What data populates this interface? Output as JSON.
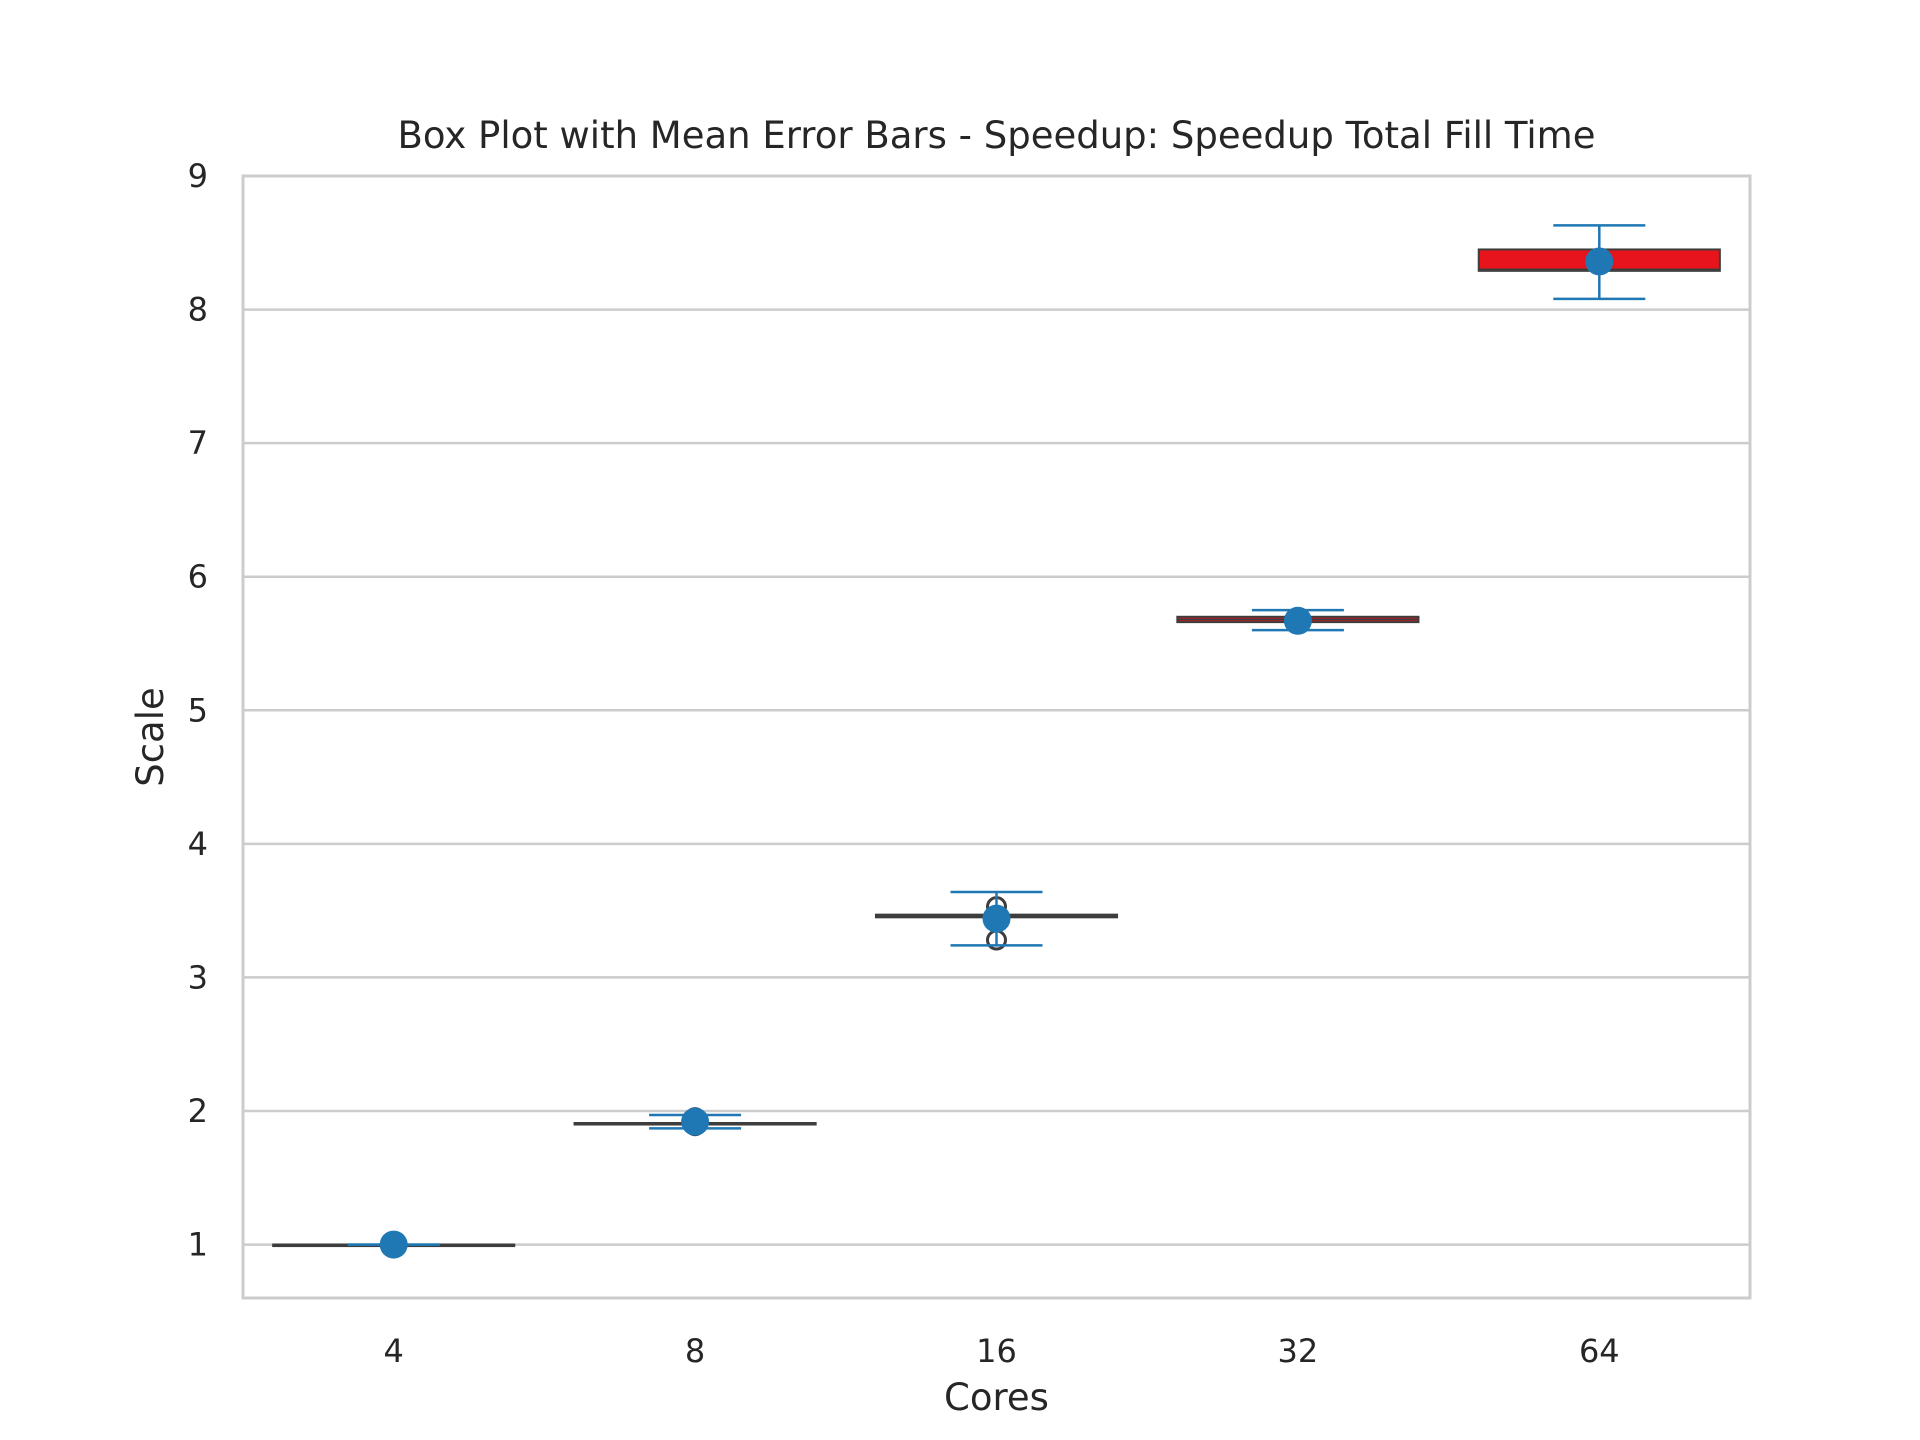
{
  "chart_data": {
    "type": "box",
    "title": "Box Plot with Mean Error Bars - Speedup: Speedup Total Fill Time",
    "xlabel": "Cores",
    "ylabel": "Scale",
    "categories": [
      "4",
      "8",
      "16",
      "32",
      "64"
    ],
    "ylim": [
      0.6,
      9.0
    ],
    "yticks": [
      1,
      2,
      3,
      4,
      5,
      6,
      7,
      8,
      9
    ],
    "grid": true,
    "colors": {
      "box_fill": "#e8141c",
      "box_edge": "#3d3d3d",
      "mean_marker": "#1f77b4",
      "errorbar": "#1f77b4",
      "grid": "#cccccc",
      "spine": "#cccccc",
      "text": "#262626"
    },
    "boxes": [
      {
        "category": "4",
        "q1": 1.0,
        "median": 1.0,
        "q3": 1.0,
        "whisker_low": 1.0,
        "whisker_high": 1.0,
        "outliers": [],
        "mean": 1.0,
        "err_low": 1.0,
        "err_high": 1.0
      },
      {
        "category": "8",
        "q1": 1.91,
        "median": 1.91,
        "q3": 1.91,
        "whisker_low": 1.91,
        "whisker_high": 1.91,
        "outliers": [
          1.89,
          1.95
        ],
        "mean": 1.92,
        "err_low": 1.87,
        "err_high": 1.97
      },
      {
        "category": "16",
        "q1": 3.45,
        "median": 3.46,
        "q3": 3.47,
        "whisker_low": 3.45,
        "whisker_high": 3.47,
        "outliers": [
          3.28,
          3.53
        ],
        "mean": 3.44,
        "err_low": 3.24,
        "err_high": 3.64
      },
      {
        "category": "32",
        "q1": 5.66,
        "median": 5.68,
        "q3": 5.7,
        "whisker_low": 5.66,
        "whisker_high": 5.7,
        "outliers": [],
        "mean": 5.67,
        "err_low": 5.6,
        "err_high": 5.75
      },
      {
        "category": "64",
        "q1": 8.29,
        "median": 8.3,
        "q3": 8.45,
        "whisker_low": 8.29,
        "whisker_high": 8.45,
        "outliers": [],
        "mean": 8.36,
        "err_low": 8.08,
        "err_high": 8.63
      }
    ]
  }
}
